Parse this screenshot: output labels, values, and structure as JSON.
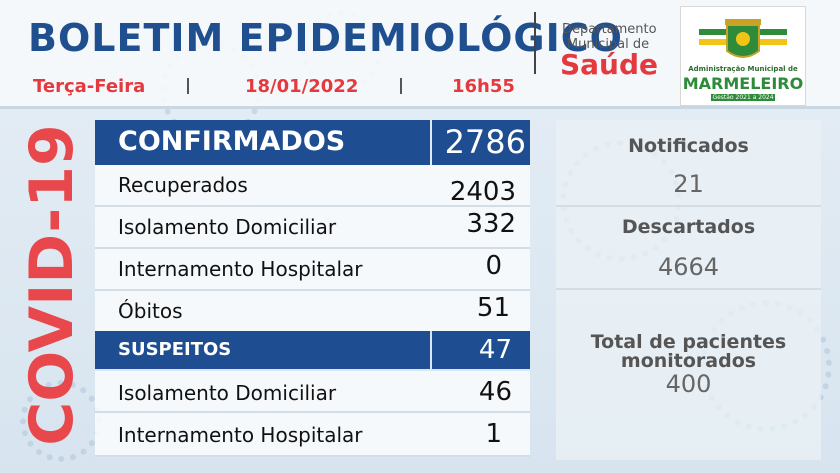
{
  "header": {
    "title": "BOLETIM EPIDEMIOLÓGICO",
    "weekday": "Terça-Feira",
    "date": "18/01/2022",
    "time": "16h55",
    "dept_line1": "Departamento",
    "dept_line2": "Municipal de",
    "dept_name": "Saúde",
    "logo_text_1": "Administração Municipal de",
    "logo_text_2": "MARMELEIRO",
    "logo_text_3": "Gestão 2021 a 2024"
  },
  "side_label": "COVID-19",
  "confirmados": {
    "label": "CONFIRMADOS",
    "value": "2786",
    "rows": [
      {
        "label": "Recuperados",
        "value": "2403"
      },
      {
        "label": "Isolamento Domiciliar",
        "value": "332"
      },
      {
        "label": "Internamento Hospitalar",
        "value": "0"
      },
      {
        "label": "Óbitos",
        "value": "51"
      }
    ]
  },
  "suspeitos": {
    "label": "SUSPEITOS",
    "value": "47",
    "rows": [
      {
        "label": "Isolamento Domiciliar",
        "value": "46"
      },
      {
        "label": "Internamento Hospitalar",
        "value": "1"
      }
    ]
  },
  "right": {
    "notificados_label": "Notificados",
    "notificados_value": "21",
    "descartados_label": "Descartados",
    "descartados_value": "4664",
    "monitorados_label_1": "Total de pacientes",
    "monitorados_label_2": "monitorados",
    "monitorados_value": "400"
  },
  "colors": {
    "brand_blue": "#1e4e91",
    "accent_red": "#e3393f"
  }
}
